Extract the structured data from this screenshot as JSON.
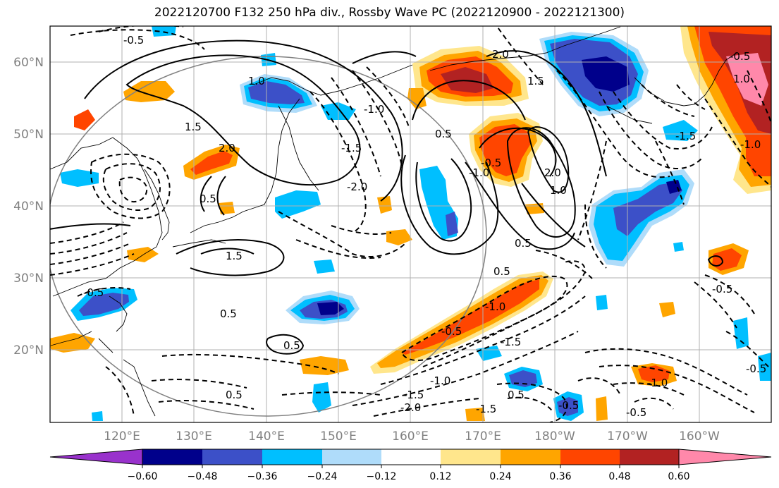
{
  "title": "2022120700 F132 250 hPa div., Rossby Wave PC (2022120900 - 2022121300)",
  "map": {
    "lat_labels": [
      "60°N",
      "50°N",
      "40°N",
      "30°N",
      "20°N"
    ],
    "lon_labels": [
      "120°E",
      "130°E",
      "140°E",
      "150°E",
      "160°E",
      "170°E",
      "180°W",
      "170°W",
      "160°W"
    ],
    "contour_labels": [
      "-0.5",
      "1.0",
      "1.5",
      "2.0",
      "0.5",
      "-1.0",
      "-1.5",
      "-2.0",
      "-0.5",
      "0.5",
      "1.5",
      "2.0",
      "1.0",
      "2.0",
      "0.5",
      "-0.5",
      "-1.0",
      "-1.5",
      "-1.0",
      "-1.5",
      "-2.0",
      "-0.5",
      "0.5",
      "-1.0",
      "-0.5",
      "-1.5",
      "1.0",
      "-0.5",
      "-1.0",
      "-1.5",
      "1.5",
      "0.5",
      "0.5",
      "0.5",
      "-0.5",
      "-0.5",
      "0.5",
      "-1.0",
      "-0.5"
    ]
  },
  "colorbar": {
    "tick_labels": [
      "−0.60",
      "−0.48",
      "−0.36",
      "−0.24",
      "−0.12",
      "0.12",
      "0.24",
      "0.36",
      "0.48",
      "0.60"
    ],
    "colors": [
      "#9932cc",
      "#00008b",
      "#3c50c8",
      "#00bfff",
      "#afdcfa",
      "#ffffff",
      "#ffe68c",
      "#ffa500",
      "#ff4500",
      "#b22222",
      "#ff88aa"
    ]
  }
}
